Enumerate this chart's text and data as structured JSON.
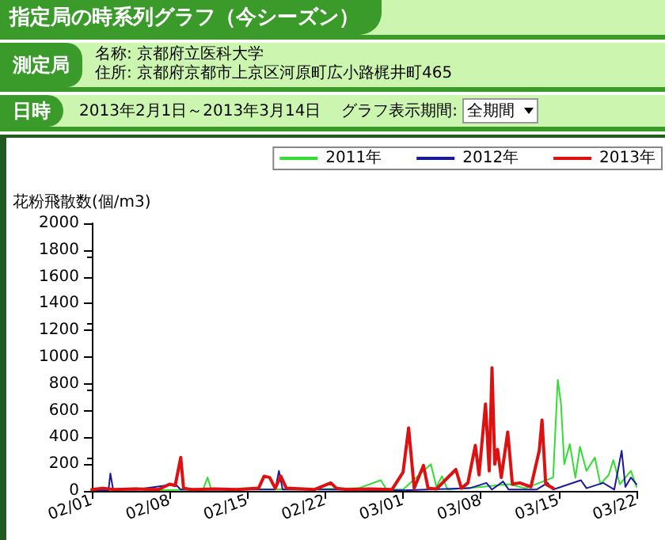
{
  "chart_data": {
    "type": "line",
    "title": "指定局の時系列グラフ（今シーズン）",
    "annotations": [
      "測定局",
      "名称: 京都府立医科大学",
      "住所: 京都府京都市上京区河原町広小路梶井町465",
      "日時",
      "2013年2月1日～2013年3月14日",
      "グラフ表示期間:",
      "全期間"
    ],
    "ylabel": "花粉飛散数(個/m3)",
    "xlim": [
      "--02-01",
      "--03-22"
    ],
    "xticks": [
      {
        "value": "--02-01",
        "label": "02/01"
      },
      {
        "value": "--02-08",
        "label": "02/08"
      },
      {
        "value": "--02-15",
        "label": "02/15"
      },
      {
        "value": "--02-22",
        "label": "02/22"
      },
      {
        "value": "--03-01",
        "label": "03/01"
      },
      {
        "value": "--03-08",
        "label": "03/08"
      },
      {
        "value": "--03-15",
        "label": "03/15"
      },
      {
        "value": "--03-22",
        "label": "03/22"
      }
    ],
    "ylim": [
      0,
      2000
    ],
    "yticks": [
      0,
      200,
      400,
      600,
      800,
      1000,
      1200,
      1400,
      1600,
      1800,
      2000
    ],
    "grid": false,
    "legend": "top right",
    "marker": "none",
    "line_style": "solid",
    "series": [
      {
        "name": "2011年",
        "color": "#33dd33",
        "x": [
          "--02-01",
          "--02-05",
          "--02-06",
          "--02-11T00:00",
          "--02-11T10:00",
          "--02-11T18:00",
          "--02-14",
          "--02-20",
          "--02-25",
          "--02-27T00:00",
          "--02-27T12:00",
          "--03-01",
          "--03-03T12:00",
          "--03-04",
          "--03-04T12:00",
          "--03-05",
          "--03-08",
          "--03-10T12:00",
          "--03-12",
          "--03-14T12:00",
          "--03-14T22:00",
          "--03-15T05:00",
          "--03-15T12:00",
          "--03-16T00:00",
          "--03-16T12:00",
          "--03-16T22:00",
          "--03-17T12:00",
          "--03-18T06:00",
          "--03-18T18:00",
          "--03-19T12:00",
          "--03-19T22:00",
          "--03-20T12:00",
          "--03-21T12:00",
          "--03-22"
        ],
        "values": [
          5,
          20,
          5,
          10,
          100,
          10,
          15,
          10,
          20,
          80,
          10,
          10,
          200,
          30,
          110,
          10,
          30,
          50,
          20,
          100,
          830,
          650,
          200,
          350,
          100,
          330,
          150,
          250,
          50,
          120,
          230,
          50,
          150,
          30
        ]
      },
      {
        "name": "2012年",
        "color": "#1a1a9a",
        "x": [
          "--02-01",
          "--02-02T12:00",
          "--02-02T16:00",
          "--02-02T22:00",
          "--02-05",
          "--02-08T12:00",
          "--02-09",
          "--02-17T12:00",
          "--02-17T20:00",
          "--02-18T04:00",
          "--02-22",
          "--03-01",
          "--03-07",
          "--03-08T12:00",
          "--03-09",
          "--03-10",
          "--03-10T12:00",
          "--03-13",
          "--03-14T00:00",
          "--03-14T12:00",
          "--03-17T00:00",
          "--03-17T12:00",
          "--03-19",
          "--03-20T00:00",
          "--03-20T16:00",
          "--03-21T00:00",
          "--03-21T12:00",
          "--03-22"
        ],
        "values": [
          5,
          5,
          130,
          10,
          10,
          50,
          10,
          10,
          150,
          10,
          10,
          5,
          20,
          60,
          10,
          70,
          10,
          10,
          60,
          10,
          80,
          20,
          60,
          10,
          300,
          30,
          100,
          50
        ]
      },
      {
        "name": "2013年",
        "color": "#dd1111",
        "x": [
          "--02-01",
          "--02-02",
          "--02-03",
          "--02-05",
          "--02-07",
          "--02-08T00:00",
          "--02-08T12:00",
          "--02-09T00:00",
          "--02-09T06:00",
          "--02-10",
          "--02-12",
          "--02-14",
          "--02-16T00:00",
          "--02-16T12:00",
          "--02-17T00:00",
          "--02-17T12:00",
          "--02-18T00:00",
          "--02-18T12:00",
          "--02-20",
          "--02-21",
          "--02-22T12:00",
          "--02-23",
          "--02-24",
          "--02-26",
          "--02-28",
          "--03-01T00:00",
          "--03-01T12:00",
          "--03-02T00:00",
          "--03-02T20:00",
          "--03-03T06:00",
          "--03-04",
          "--03-05T18:00",
          "--03-06T06:00",
          "--03-06T20:00",
          "--03-07T12:00",
          "--03-07T20:00",
          "--03-08T10:00",
          "--03-08T18:00",
          "--03-09T00:00",
          "--03-09T06:00",
          "--03-09T12:00",
          "--03-09T20:00",
          "--03-10T10:00",
          "--03-10T20:00",
          "--03-11T12:00",
          "--03-12T12:00",
          "--03-13T06:00",
          "--03-13T12:00",
          "--03-13T20:00",
          "--03-14T12:00"
        ],
        "values": [
          10,
          20,
          10,
          15,
          10,
          50,
          40,
          250,
          20,
          10,
          15,
          10,
          20,
          110,
          100,
          20,
          110,
          20,
          15,
          10,
          60,
          20,
          10,
          15,
          10,
          140,
          470,
          20,
          190,
          20,
          15,
          160,
          20,
          60,
          340,
          120,
          650,
          150,
          920,
          200,
          310,
          100,
          440,
          50,
          60,
          30,
          300,
          530,
          50,
          20
        ]
      }
    ]
  }
}
